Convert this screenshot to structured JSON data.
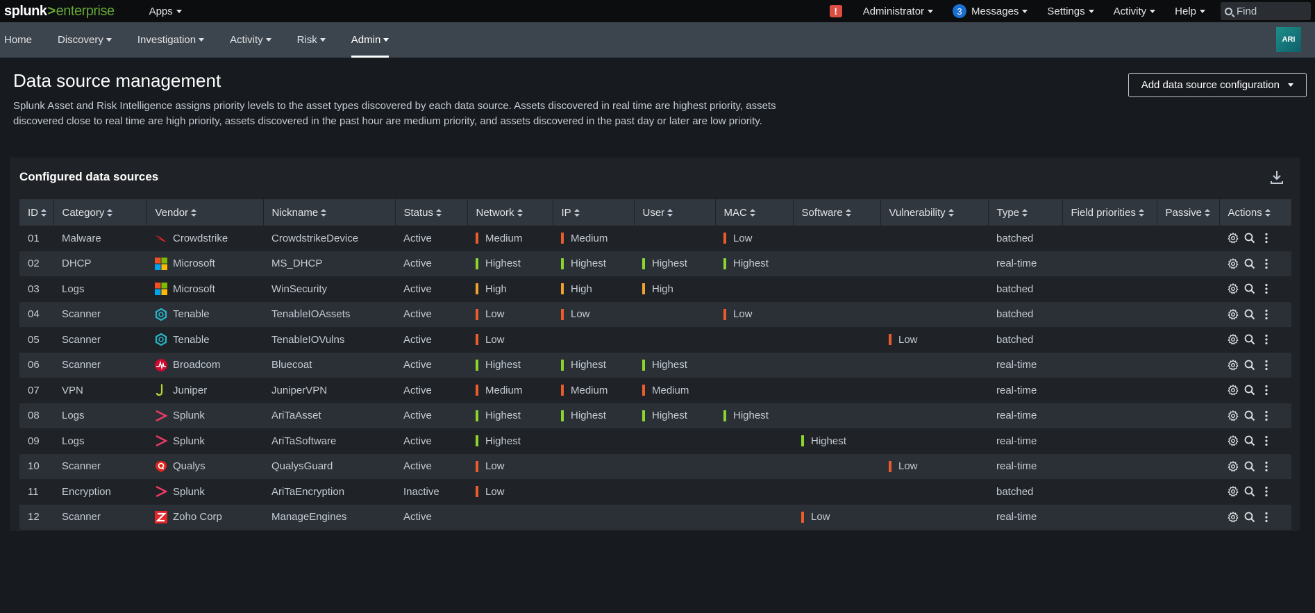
{
  "brand": {
    "part1": "splunk",
    "part2": ">",
    "part3": "enterprise"
  },
  "topbar": {
    "apps_label": "Apps",
    "alert_badge": "!",
    "administrator_label": "Administrator",
    "messages_count": "3",
    "messages_label": "Messages",
    "settings_label": "Settings",
    "activity_label": "Activity",
    "help_label": "Help",
    "find_placeholder": "Find"
  },
  "appbar": {
    "items": [
      {
        "label": "Home",
        "dropdown": false
      },
      {
        "label": "Discovery",
        "dropdown": true
      },
      {
        "label": "Investigation",
        "dropdown": true
      },
      {
        "label": "Activity",
        "dropdown": true
      },
      {
        "label": "Risk",
        "dropdown": true
      },
      {
        "label": "Admin",
        "dropdown": true,
        "active": true
      }
    ],
    "app_badge": "ARI"
  },
  "page": {
    "title": "Data source management",
    "description": "Splunk Asset and Risk Intelligence assigns priority levels to the asset types discovered by each data source. Assets discovered in real time are highest priority, assets discovered close to real time are high priority, assets discovered in the past hour are medium priority, and assets discovered in the past day or later are low priority.",
    "add_button": "Add data source configuration"
  },
  "panel": {
    "title": "Configured data sources",
    "columns": [
      "ID",
      "Category",
      "Vendor",
      "Nickname",
      "Status",
      "Network",
      "IP",
      "User",
      "MAC",
      "Software",
      "Vulnerability",
      "Type",
      "Field priorities",
      "Passive",
      "Actions"
    ],
    "priority_colors": {
      "Highest": "#8bd62d",
      "High": "#f1a12f",
      "Medium": "#ea5d2a",
      "Low": "#ea5d2a"
    },
    "rows": [
      {
        "id": "01",
        "category": "Malware",
        "vendor": "Crowdstrike",
        "vendor_icon": "crowdstrike-icon",
        "nickname": "CrowdstrikeDevice",
        "status": "Active",
        "network": "Medium",
        "ip": "Medium",
        "user": "",
        "mac": "Low",
        "software": "",
        "vulnerability": "",
        "type": "batched"
      },
      {
        "id": "02",
        "category": "DHCP",
        "vendor": "Microsoft",
        "vendor_icon": "microsoft-icon",
        "nickname": "MS_DHCP",
        "status": "Active",
        "network": "Highest",
        "ip": "Highest",
        "user": "Highest",
        "mac": "Highest",
        "software": "",
        "vulnerability": "",
        "type": "real-time"
      },
      {
        "id": "03",
        "category": "Logs",
        "vendor": "Microsoft",
        "vendor_icon": "microsoft-icon",
        "nickname": "WinSecurity",
        "status": "Active",
        "network": "High",
        "ip": "High",
        "user": "High",
        "mac": "",
        "software": "",
        "vulnerability": "",
        "type": "batched"
      },
      {
        "id": "04",
        "category": "Scanner",
        "vendor": "Tenable",
        "vendor_icon": "tenable-icon",
        "nickname": "TenableIOAssets",
        "status": "Active",
        "network": "Low",
        "ip": "Low",
        "user": "",
        "mac": "Low",
        "software": "",
        "vulnerability": "",
        "type": "batched"
      },
      {
        "id": "05",
        "category": "Scanner",
        "vendor": "Tenable",
        "vendor_icon": "tenable-icon",
        "nickname": "TenableIOVulns",
        "status": "Active",
        "network": "Low",
        "ip": "",
        "user": "",
        "mac": "",
        "software": "",
        "vulnerability": "Low",
        "type": "batched"
      },
      {
        "id": "06",
        "category": "Scanner",
        "vendor": "Broadcom",
        "vendor_icon": "broadcom-icon",
        "nickname": "Bluecoat",
        "status": "Active",
        "network": "Highest",
        "ip": "Highest",
        "user": "Highest",
        "mac": "",
        "software": "",
        "vulnerability": "",
        "type": "real-time"
      },
      {
        "id": "07",
        "category": "VPN",
        "vendor": "Juniper",
        "vendor_icon": "juniper-icon",
        "nickname": "JuniperVPN",
        "status": "Active",
        "network": "Medium",
        "ip": "Medium",
        "user": "Medium",
        "mac": "",
        "software": "",
        "vulnerability": "",
        "type": "real-time"
      },
      {
        "id": "08",
        "category": "Logs",
        "vendor": "Splunk",
        "vendor_icon": "splunk-icon",
        "nickname": "AriTaAsset",
        "status": "Active",
        "network": "Highest",
        "ip": "Highest",
        "user": "Highest",
        "mac": "Highest",
        "software": "",
        "vulnerability": "",
        "type": "real-time"
      },
      {
        "id": "09",
        "category": "Logs",
        "vendor": "Splunk",
        "vendor_icon": "splunk-icon",
        "nickname": "AriTaSoftware",
        "status": "Active",
        "network": "Highest",
        "ip": "",
        "user": "",
        "mac": "",
        "software": "Highest",
        "vulnerability": "",
        "type": "real-time"
      },
      {
        "id": "10",
        "category": "Scanner",
        "vendor": "Qualys",
        "vendor_icon": "qualys-icon",
        "nickname": "QualysGuard",
        "status": "Active",
        "network": "Low",
        "ip": "",
        "user": "",
        "mac": "",
        "software": "",
        "vulnerability": "Low",
        "type": "real-time"
      },
      {
        "id": "11",
        "category": "Encryption",
        "vendor": "Splunk",
        "vendor_icon": "splunk-icon",
        "nickname": "AriTaEncryption",
        "status": "Inactive",
        "network": "Low",
        "ip": "",
        "user": "",
        "mac": "",
        "software": "",
        "vulnerability": "",
        "type": "batched"
      },
      {
        "id": "12",
        "category": "Scanner",
        "vendor": "Zoho Corp",
        "vendor_icon": "zoho-icon",
        "nickname": "ManageEngines",
        "status": "Active",
        "network": "",
        "ip": "",
        "user": "",
        "mac": "",
        "software": "Low",
        "vulnerability": "",
        "type": "real-time"
      }
    ]
  }
}
